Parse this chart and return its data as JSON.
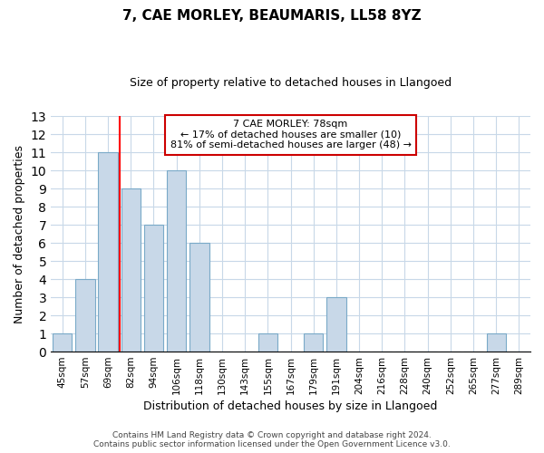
{
  "title": "7, CAE MORLEY, BEAUMARIS, LL58 8YZ",
  "subtitle": "Size of property relative to detached houses in Llangoed",
  "xlabel": "Distribution of detached houses by size in Llangoed",
  "ylabel": "Number of detached properties",
  "bar_labels": [
    "45sqm",
    "57sqm",
    "69sqm",
    "82sqm",
    "94sqm",
    "106sqm",
    "118sqm",
    "130sqm",
    "143sqm",
    "155sqm",
    "167sqm",
    "179sqm",
    "191sqm",
    "204sqm",
    "216sqm",
    "228sqm",
    "240sqm",
    "252sqm",
    "265sqm",
    "277sqm",
    "289sqm"
  ],
  "bar_values": [
    1,
    4,
    11,
    9,
    7,
    10,
    6,
    0,
    0,
    1,
    0,
    1,
    3,
    0,
    0,
    0,
    0,
    0,
    0,
    1,
    0
  ],
  "bar_color": "#c8d8e8",
  "bar_edgecolor": "#7aaac8",
  "red_line_index": 3,
  "ylim": [
    0,
    13
  ],
  "yticks": [
    0,
    1,
    2,
    3,
    4,
    5,
    6,
    7,
    8,
    9,
    10,
    11,
    12,
    13
  ],
  "annotation_title": "7 CAE MORLEY: 78sqm",
  "annotation_line1": "← 17% of detached houses are smaller (10)",
  "annotation_line2": "81% of semi-detached houses are larger (48) →",
  "footer_line1": "Contains HM Land Registry data © Crown copyright and database right 2024.",
  "footer_line2": "Contains public sector information licensed under the Open Government Licence v3.0.",
  "background_color": "#ffffff",
  "grid_color": "#c8d8e8"
}
